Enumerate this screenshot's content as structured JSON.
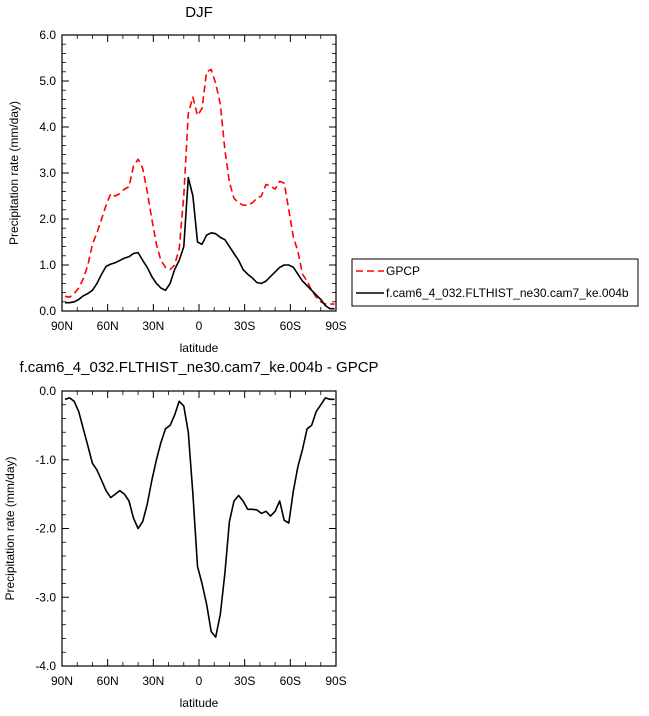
{
  "chart_data": [
    {
      "type": "line",
      "title": "DJF",
      "xlabel": "latitude",
      "ylabel": "Precipitation rate (mm/day)",
      "xlim": [
        90,
        -90
      ],
      "ylim": [
        0,
        6
      ],
      "x_ticks": [
        90,
        60,
        30,
        0,
        -30,
        -60,
        -90
      ],
      "x_tick_labels": [
        "90N",
        "60N",
        "30N",
        "0",
        "30S",
        "60S",
        "90S"
      ],
      "y_ticks": [
        0,
        1,
        2,
        3,
        4,
        5,
        6
      ],
      "y_tick_labels": [
        "0.0",
        "1.0",
        "2.0",
        "3.0",
        "4.0",
        "5.0",
        "6.0"
      ],
      "legend_position": "outside-right",
      "series": [
        {
          "name": "GPCP",
          "color": "#ff0000",
          "dash": "dashed",
          "x": [
            88,
            85,
            82,
            79,
            76,
            73,
            70,
            67,
            64,
            61,
            58,
            55,
            52,
            49,
            46,
            43,
            40,
            37,
            34,
            31,
            28,
            25,
            22,
            19,
            16,
            13,
            10,
            7,
            4,
            1,
            -2,
            -5,
            -8,
            -11,
            -14,
            -17,
            -20,
            -23,
            -26,
            -29,
            -32,
            -35,
            -38,
            -41,
            -44,
            -47,
            -50,
            -53,
            -56,
            -59,
            -62,
            -65,
            -68,
            -71,
            -74,
            -77,
            -80,
            -83,
            -86,
            -89
          ],
          "y": [
            0.32,
            0.3,
            0.38,
            0.5,
            0.7,
            1.0,
            1.45,
            1.7,
            2.0,
            2.3,
            2.55,
            2.5,
            2.55,
            2.65,
            2.7,
            3.15,
            3.3,
            3.1,
            2.6,
            2.0,
            1.45,
            1.1,
            0.95,
            0.9,
            1.0,
            1.35,
            2.5,
            4.3,
            4.65,
            4.25,
            4.4,
            5.2,
            5.25,
            4.95,
            4.5,
            3.5,
            2.8,
            2.45,
            2.35,
            2.3,
            2.3,
            2.35,
            2.45,
            2.5,
            2.75,
            2.72,
            2.65,
            2.82,
            2.78,
            2.2,
            1.6,
            1.3,
            0.8,
            0.65,
            0.45,
            0.3,
            0.2,
            0.15,
            0.15,
            0.15
          ]
        },
        {
          "name": "f.cam6_4_032.FLTHIST_ne30.cam7_ke.004b",
          "color": "#000000",
          "dash": "solid",
          "x": [
            88,
            85,
            82,
            79,
            76,
            73,
            70,
            67,
            64,
            61,
            58,
            55,
            52,
            49,
            46,
            43,
            40,
            37,
            34,
            31,
            28,
            25,
            22,
            19,
            16,
            13,
            10,
            7,
            4,
            1,
            -2,
            -5,
            -8,
            -11,
            -14,
            -17,
            -20,
            -23,
            -26,
            -29,
            -32,
            -35,
            -38,
            -41,
            -44,
            -47,
            -50,
            -53,
            -56,
            -59,
            -62,
            -65,
            -68,
            -71,
            -74,
            -77,
            -80,
            -83,
            -86,
            -89
          ],
          "y": [
            0.18,
            0.18,
            0.2,
            0.25,
            0.33,
            0.38,
            0.45,
            0.6,
            0.8,
            0.97,
            1.02,
            1.05,
            1.1,
            1.15,
            1.18,
            1.25,
            1.27,
            1.1,
            0.95,
            0.75,
            0.6,
            0.5,
            0.45,
            0.6,
            0.9,
            1.1,
            1.4,
            2.9,
            2.5,
            1.5,
            1.45,
            1.65,
            1.7,
            1.68,
            1.6,
            1.55,
            1.4,
            1.25,
            1.1,
            0.9,
            0.8,
            0.72,
            0.62,
            0.6,
            0.65,
            0.75,
            0.85,
            0.95,
            1.0,
            1.0,
            0.95,
            0.8,
            0.65,
            0.55,
            0.45,
            0.35,
            0.25,
            0.12,
            0.05,
            0.05
          ]
        }
      ]
    },
    {
      "type": "line",
      "title": "f.cam6_4_032.FLTHIST_ne30.cam7_ke.004b - GPCP",
      "xlabel": "latitude",
      "ylabel": "Precipitation rate (mm/day)",
      "xlim": [
        90,
        -90
      ],
      "ylim": [
        -4,
        0
      ],
      "x_ticks": [
        90,
        60,
        30,
        0,
        -30,
        -60,
        -90
      ],
      "x_tick_labels": [
        "90N",
        "60N",
        "30N",
        "0",
        "30S",
        "60S",
        "90S"
      ],
      "y_ticks": [
        0,
        -1,
        -2,
        -3,
        -4
      ],
      "y_tick_labels": [
        "0.0",
        "-1.0",
        "-2.0",
        "-3.0",
        "-4.0"
      ],
      "series": [
        {
          "color": "#000000",
          "dash": "solid",
          "x": [
            88,
            85,
            82,
            79,
            76,
            73,
            70,
            67,
            64,
            61,
            58,
            55,
            52,
            49,
            46,
            43,
            40,
            37,
            34,
            31,
            28,
            25,
            22,
            19,
            16,
            13,
            10,
            7,
            4,
            1,
            -2,
            -5,
            -8,
            -11,
            -14,
            -17,
            -20,
            -23,
            -26,
            -29,
            -32,
            -35,
            -38,
            -41,
            -44,
            -47,
            -50,
            -53,
            -56,
            -59,
            -62,
            -65,
            -68,
            -71,
            -74,
            -77,
            -80,
            -83,
            -86,
            -89
          ],
          "y": [
            -0.12,
            -0.1,
            -0.15,
            -0.3,
            -0.55,
            -0.8,
            -1.05,
            -1.15,
            -1.3,
            -1.45,
            -1.55,
            -1.5,
            -1.45,
            -1.5,
            -1.6,
            -1.85,
            -2.0,
            -1.9,
            -1.65,
            -1.3,
            -1.0,
            -0.75,
            -0.55,
            -0.5,
            -0.35,
            -0.15,
            -0.22,
            -0.6,
            -1.5,
            -2.55,
            -2.8,
            -3.1,
            -3.5,
            -3.58,
            -3.25,
            -2.65,
            -1.9,
            -1.6,
            -1.52,
            -1.6,
            -1.72,
            -1.72,
            -1.73,
            -1.78,
            -1.75,
            -1.82,
            -1.75,
            -1.6,
            -1.88,
            -1.92,
            -1.45,
            -1.1,
            -0.85,
            -0.55,
            -0.5,
            -0.3,
            -0.2,
            -0.1,
            -0.12,
            -0.12
          ]
        }
      ]
    }
  ]
}
